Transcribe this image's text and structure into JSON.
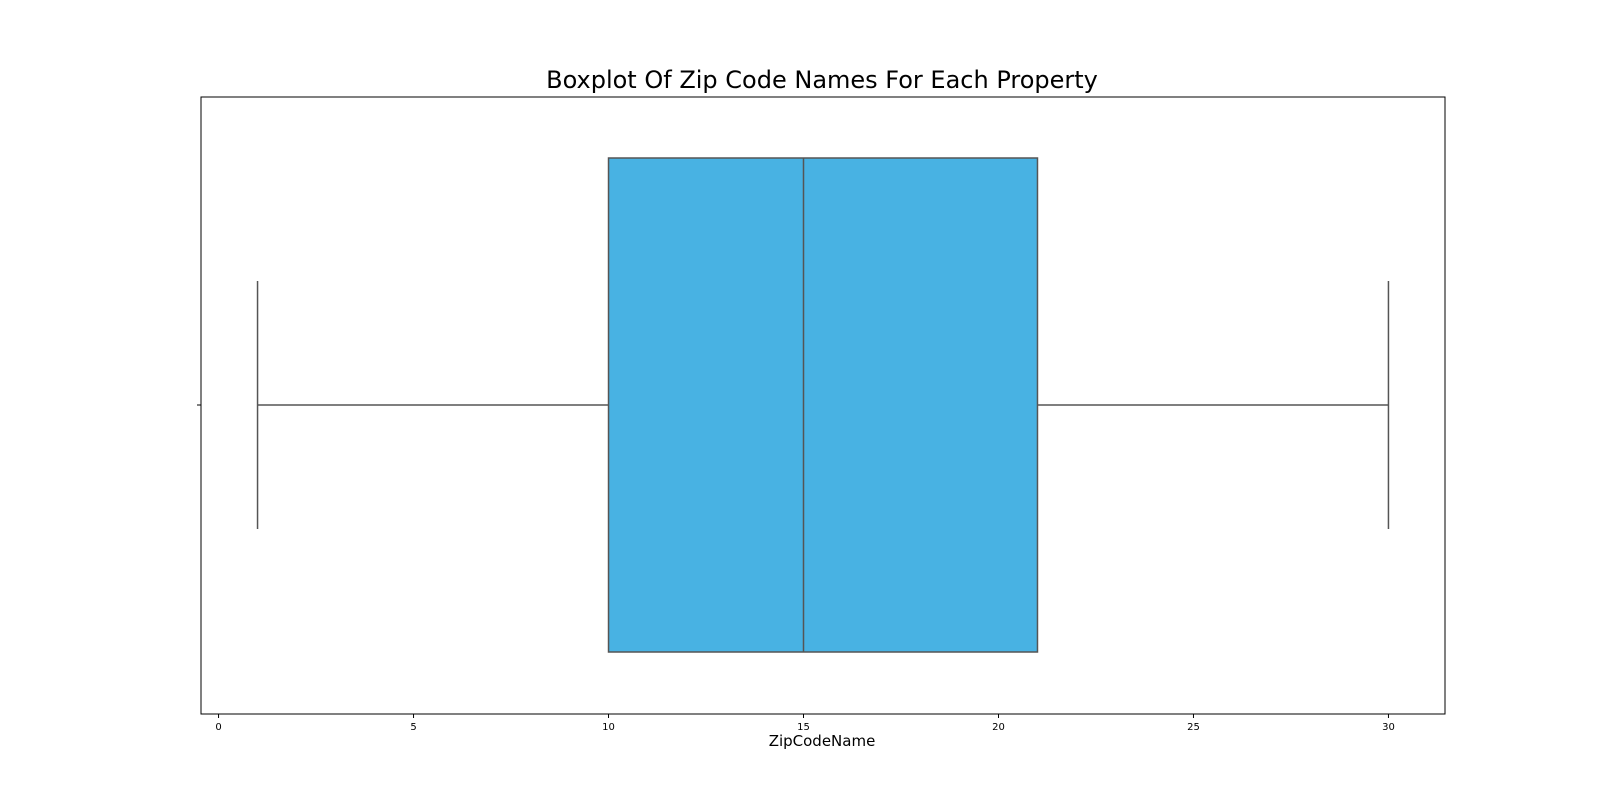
{
  "chart_data": {
    "type": "boxplot",
    "title": "Boxplot Of Zip Code Names For Each Property",
    "xlabel": "ZipCodeName",
    "ylabel": "",
    "orientation": "horizontal",
    "xlim": [
      -0.45,
      31.45
    ],
    "x_ticks": [
      0,
      5,
      10,
      15,
      20,
      25,
      30
    ],
    "x_tick_labels": [
      "0",
      "5",
      "10",
      "15",
      "20",
      "25",
      "30"
    ],
    "box": {
      "whisker_low": 1,
      "q1": 10,
      "median": 15,
      "q3": 21,
      "whisker_high": 30
    },
    "box_color": "#48b2e3",
    "line_color": "#555555",
    "grid": false,
    "legend": "none"
  }
}
